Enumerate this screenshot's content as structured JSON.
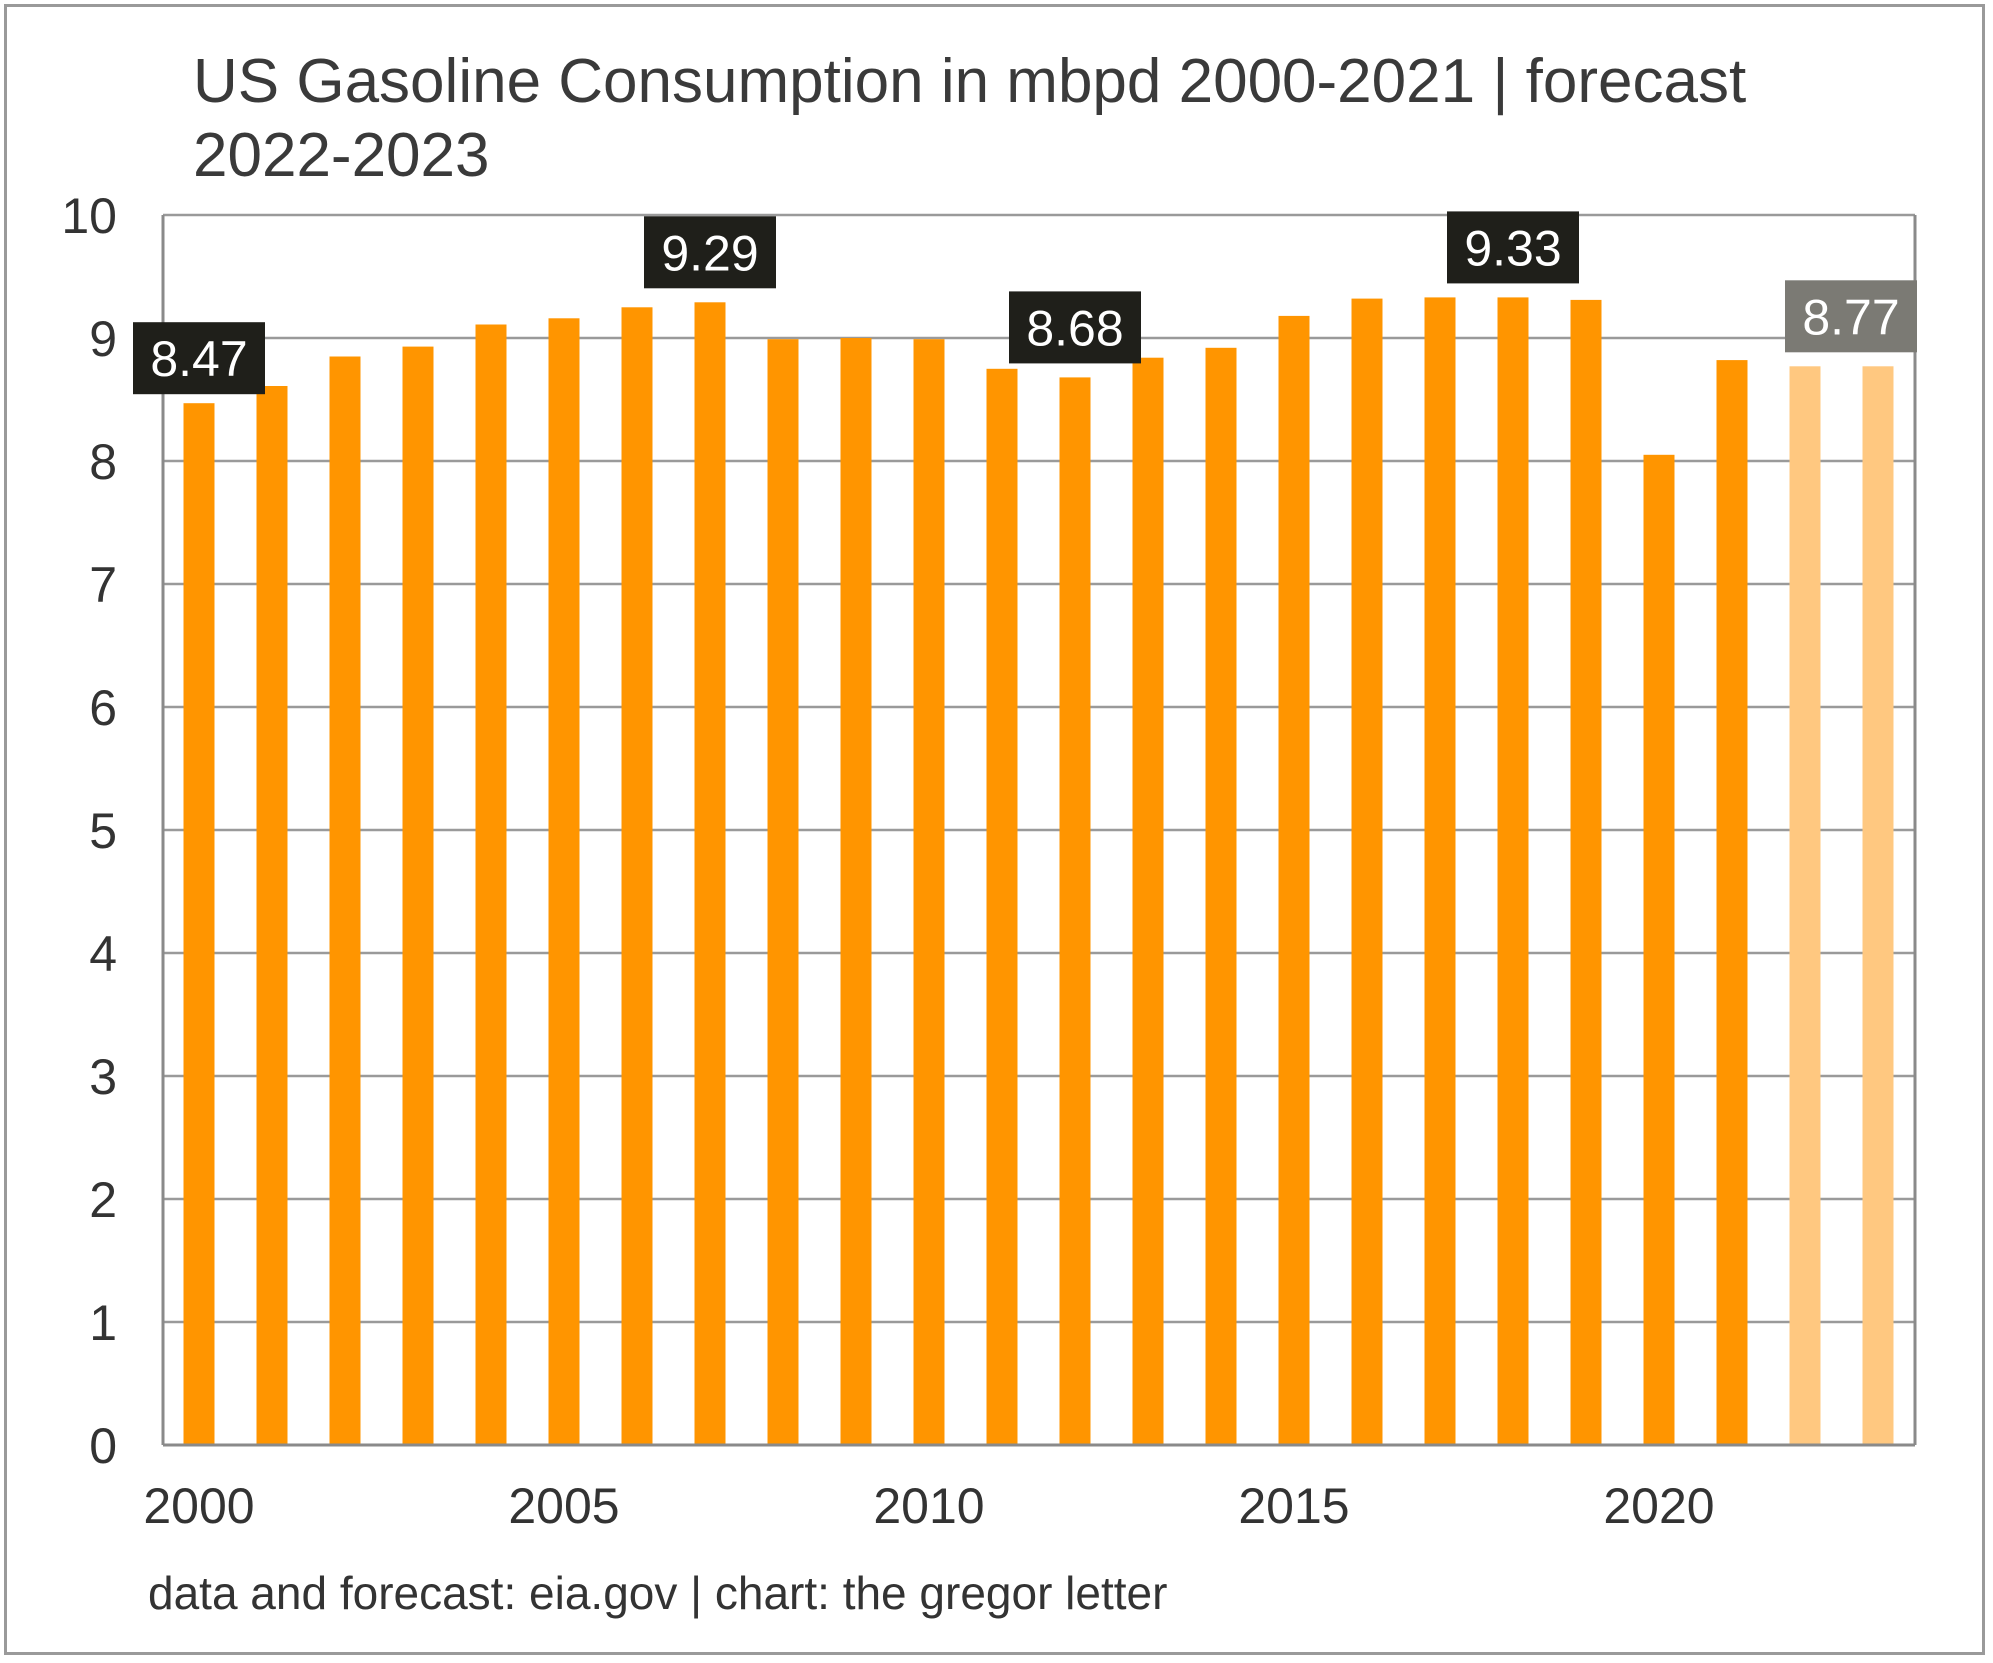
{
  "chart_data": {
    "type": "bar",
    "title": "US Gasoline Consumption in mbpd 2000-2021 | forecast 2022-2023",
    "title_lines": [
      "US Gasoline Consumption in mbpd 2000-2021 | forecast",
      "2022-2023"
    ],
    "source": "data and forecast: eia.gov | chart: the gregor letter",
    "xlabel": "",
    "ylabel": "",
    "ylim": [
      0,
      10
    ],
    "yticks": [
      0,
      1,
      2,
      3,
      4,
      5,
      6,
      7,
      8,
      9,
      10
    ],
    "xticks": [
      2000,
      2005,
      2010,
      2015,
      2020
    ],
    "grid": "horizontal",
    "legend": "none",
    "categories": [
      2000,
      2001,
      2002,
      2003,
      2004,
      2005,
      2006,
      2007,
      2008,
      2009,
      2010,
      2011,
      2012,
      2013,
      2014,
      2015,
      2016,
      2017,
      2018,
      2019,
      2020,
      2021,
      2022,
      2023
    ],
    "values": [
      8.47,
      8.61,
      8.85,
      8.93,
      9.11,
      9.16,
      9.25,
      9.29,
      8.99,
      9.0,
      8.99,
      8.75,
      8.68,
      8.84,
      8.92,
      9.18,
      9.32,
      9.33,
      9.33,
      9.31,
      8.05,
      8.82,
      8.77,
      8.77
    ],
    "forecast_years": [
      2022,
      2023
    ],
    "annotations": [
      {
        "year": 2000,
        "label": "8.47",
        "style": "dark"
      },
      {
        "year": 2007,
        "label": "9.29",
        "style": "dark"
      },
      {
        "year": 2012,
        "label": "8.68",
        "style": "dark"
      },
      {
        "year": 2018,
        "label": "9.33",
        "style": "dark"
      },
      {
        "year": 2023,
        "label": "8.77",
        "style": "grey"
      }
    ],
    "colors": {
      "actual": "#ff9500",
      "forecast": "#ffc880",
      "callout_dark": "#1f1f1a",
      "callout_grey": "#7b7a74",
      "grid": "#9a9a9a",
      "axis": "#8a8a8a"
    }
  }
}
